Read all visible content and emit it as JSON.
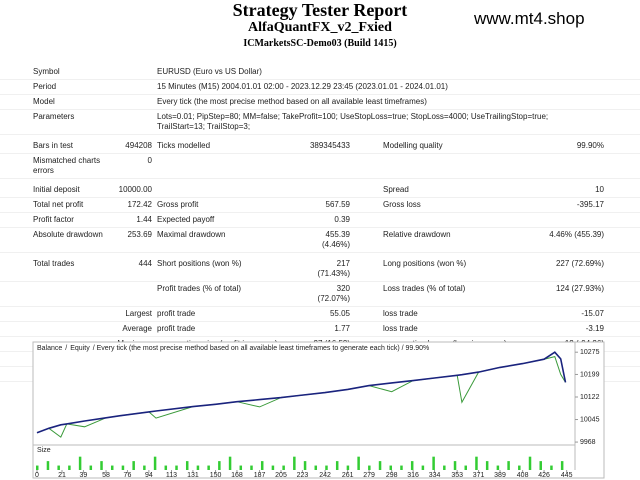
{
  "header": {
    "title": "Strategy Tester Report",
    "subtitle": "AlfaQuantFX_v2_Fxied",
    "server": "ICMarketsSC-Demo03 (Build 1415)",
    "watermark": "www.mt4.shop"
  },
  "report": {
    "sections": [
      [
        [
          "Symbol",
          null,
          "EURUSD (Euro vs US Dollar)"
        ],
        [
          "Period",
          null,
          "15 Minutes (M15) 2004.01.01 02:00 - 2023.12.29 23:45 (2023.01.01 - 2024.01.01)"
        ],
        [
          "Model",
          null,
          "Every tick (the most precise method based on all available least timeframes)"
        ],
        [
          "Parameters",
          null,
          "Lots=0.01; PipStep=80; MM=false; TakeProfit=100; UseStopLoss=true; StopLoss=4000; UseTrailingStop=true; TrailStart=13; TrailStop=3;"
        ]
      ],
      [
        [
          "Bars in test",
          "494208",
          "Ticks modelled",
          "389345433",
          "Modelling quality",
          "99.90%"
        ],
        [
          "Mismatched charts errors",
          "0",
          null,
          null,
          null,
          null
        ]
      ],
      [
        [
          "Initial deposit",
          "10000.00",
          null,
          null,
          "Spread",
          "10"
        ],
        [
          "Total net profit",
          "172.42",
          "Gross profit",
          "567.59",
          "Gross loss",
          "-395.17"
        ],
        [
          "Profit factor",
          "1.44",
          "Expected payoff",
          "0.39",
          null,
          null
        ],
        [
          "Absolute drawdown",
          "253.69",
          "Maximal drawdown",
          "455.39 (4.46%)",
          "Relative drawdown",
          "4.46% (455.39)"
        ]
      ],
      [
        [
          "Total trades",
          "444",
          "Short positions (won %)",
          "217 (71.43%)",
          "Long positions (won %)",
          "227 (72.69%)"
        ],
        [
          null,
          null,
          "Profit trades (% of total)",
          "320 (72.07%)",
          "Loss trades (% of total)",
          "124 (27.93%)"
        ],
        [
          null,
          "Largest",
          "profit trade",
          "55.05",
          "loss trade",
          "-15.07"
        ],
        [
          null,
          "Average",
          "profit trade",
          "1.77",
          "loss trade",
          "-3.19"
        ],
        [
          null,
          "Maximum",
          "consecutive wins (profit in money)",
          "27 (16.53)",
          "consecutive losses (loss in money)",
          "12 (-94.26)"
        ],
        [
          null,
          "Maximal",
          "consecutive profit (count of wins)",
          "116.23 (7)",
          "consecutive loss (count of losses)",
          "-104.83 (11)"
        ],
        [
          null,
          "Average",
          "consecutive wins",
          "6",
          "consecutive losses",
          "2"
        ]
      ]
    ]
  },
  "chart_data": [
    {
      "type": "line",
      "title": "/ Every tick (the most precise method based on all available least timeframes to generate each tick) / 99.90%",
      "separator": "/",
      "x": [
        0,
        10,
        20,
        25,
        40,
        58,
        70,
        94,
        100,
        131,
        150,
        168,
        187,
        205,
        220,
        242,
        261,
        279,
        298,
        316,
        334,
        353,
        357,
        371,
        389,
        408,
        426,
        435,
        440,
        444
      ],
      "series": [
        {
          "name": "Balance",
          "color": "#1a237e",
          "values": [
            10000,
            10015,
            10027,
            10030,
            10040,
            10051,
            10058,
            10071,
            10074,
            10089,
            10097,
            10106,
            10113,
            10120,
            10127,
            10137,
            10148,
            10161,
            10170,
            10178,
            10187,
            10196,
            10198,
            10207,
            10223,
            10236,
            10251,
            10275,
            10252,
            10172
          ]
        },
        {
          "name": "Equity",
          "color": "#3a9a3a",
          "values": [
            10000,
            10015,
            9985,
            10030,
            10020,
            10051,
            10058,
            10071,
            10050,
            10089,
            10097,
            10106,
            10088,
            10120,
            10127,
            10137,
            10148,
            10161,
            10140,
            10178,
            10187,
            10196,
            10104,
            10207,
            10223,
            10236,
            10251,
            10260,
            10199,
            10172
          ]
        }
      ],
      "xlim": [
        0,
        452
      ],
      "ylim": [
        9958,
        10303
      ],
      "xticks": [
        0,
        21,
        39,
        58,
        76,
        94,
        113,
        131,
        150,
        168,
        187,
        205,
        223,
        242,
        261,
        279,
        298,
        316,
        334,
        353,
        371,
        389,
        408,
        426,
        445
      ],
      "yticks": [
        10275,
        10199,
        10122,
        10045,
        9968
      ]
    },
    {
      "type": "bar",
      "title": "Size",
      "color": "#33cc33",
      "x": [
        0,
        9,
        18,
        27,
        36,
        45,
        54,
        63,
        72,
        81,
        90,
        99,
        108,
        117,
        126,
        135,
        144,
        153,
        162,
        171,
        180,
        189,
        198,
        207,
        216,
        225,
        234,
        243,
        252,
        261,
        270,
        279,
        288,
        297,
        306,
        315,
        324,
        333,
        342,
        351,
        360,
        369,
        378,
        387,
        396,
        405,
        414,
        423,
        432,
        441
      ],
      "values": [
        0.01,
        0.02,
        0.01,
        0.01,
        0.03,
        0.01,
        0.02,
        0.01,
        0.01,
        0.02,
        0.01,
        0.03,
        0.01,
        0.01,
        0.02,
        0.01,
        0.01,
        0.02,
        0.03,
        0.01,
        0.01,
        0.02,
        0.01,
        0.01,
        0.03,
        0.02,
        0.01,
        0.01,
        0.02,
        0.01,
        0.03,
        0.01,
        0.02,
        0.01,
        0.01,
        0.02,
        0.01,
        0.03,
        0.01,
        0.02,
        0.01,
        0.03,
        0.02,
        0.01,
        0.02,
        0.01,
        0.03,
        0.02,
        0.01,
        0.02
      ],
      "xlim": [
        0,
        452
      ],
      "ylim": [
        0,
        0.045
      ]
    }
  ]
}
